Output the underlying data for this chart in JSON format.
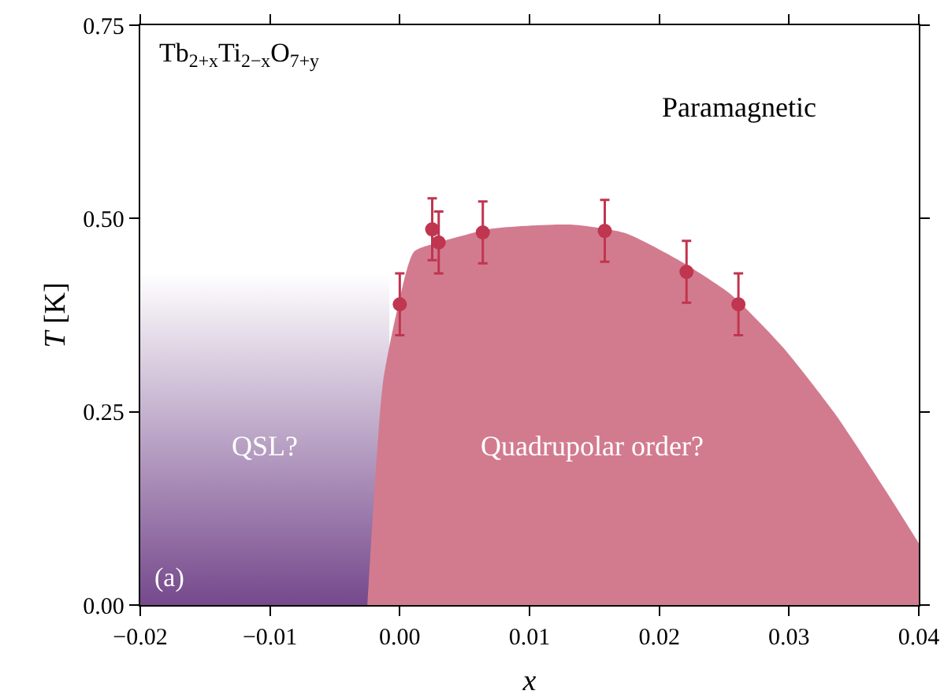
{
  "chart_data": {
    "type": "scatter",
    "xlabel": "x",
    "ylabel": "T [K]",
    "xlim": [
      -0.02,
      0.04
    ],
    "xticks": [
      {
        "value": -0.02,
        "label": "−0.02"
      },
      {
        "value": -0.01,
        "label": "−0.01"
      },
      {
        "value": 0,
        "label": "0.00"
      },
      0.01,
      0.02,
      0.03,
      0.04
    ],
    "ylim": [
      0,
      0.75
    ],
    "yticks": [
      {
        "value": 0,
        "label": "0.00"
      },
      0.25,
      {
        "value": 0.5,
        "label": "0.50"
      },
      0.75
    ],
    "grid": false,
    "legend": false,
    "series": [
      {
        "type": "area",
        "color": "#6e3f86",
        "x": [
          -0.02,
          -0.01,
          -0.0008,
          -0.0008
        ],
        "values": [
          0.43,
          0.43,
          0.43,
          0
        ]
      },
      {
        "type": "area",
        "color": "#d27b8f",
        "x": [
          -0.0025,
          -0.0013,
          -0.0001,
          0.0011,
          0.0032,
          0.0072,
          0.0133,
          0.0174,
          0.0214,
          0.0255,
          0.0295,
          0.0336,
          0.0376,
          0.04
        ],
        "values": [
          0,
          0.287,
          0.389,
          0.457,
          0.47,
          0.487,
          0.492,
          0.481,
          0.447,
          0.402,
          0.334,
          0.246,
          0.144,
          0.08
        ]
      },
      {
        "marker": "circle",
        "color": "#c0354f",
        "x": [
          0.0,
          0.0025,
          0.003,
          0.0064,
          0.0158,
          0.0221,
          0.0261
        ],
        "values": [
          0.389,
          0.486,
          0.469,
          0.482,
          0.484,
          0.431,
          0.389
        ],
        "errors": [
          0.04,
          0.04,
          0.04,
          0.04,
          0.04,
          0.04,
          0.04
        ]
      }
    ],
    "annotations": [
      "Tb$_{2+x}$Ti$_{2−x}$O$_{7+y}$",
      "(a)",
      "Paramagnetic",
      "QSL?",
      "Quadrupolar order?"
    ]
  }
}
